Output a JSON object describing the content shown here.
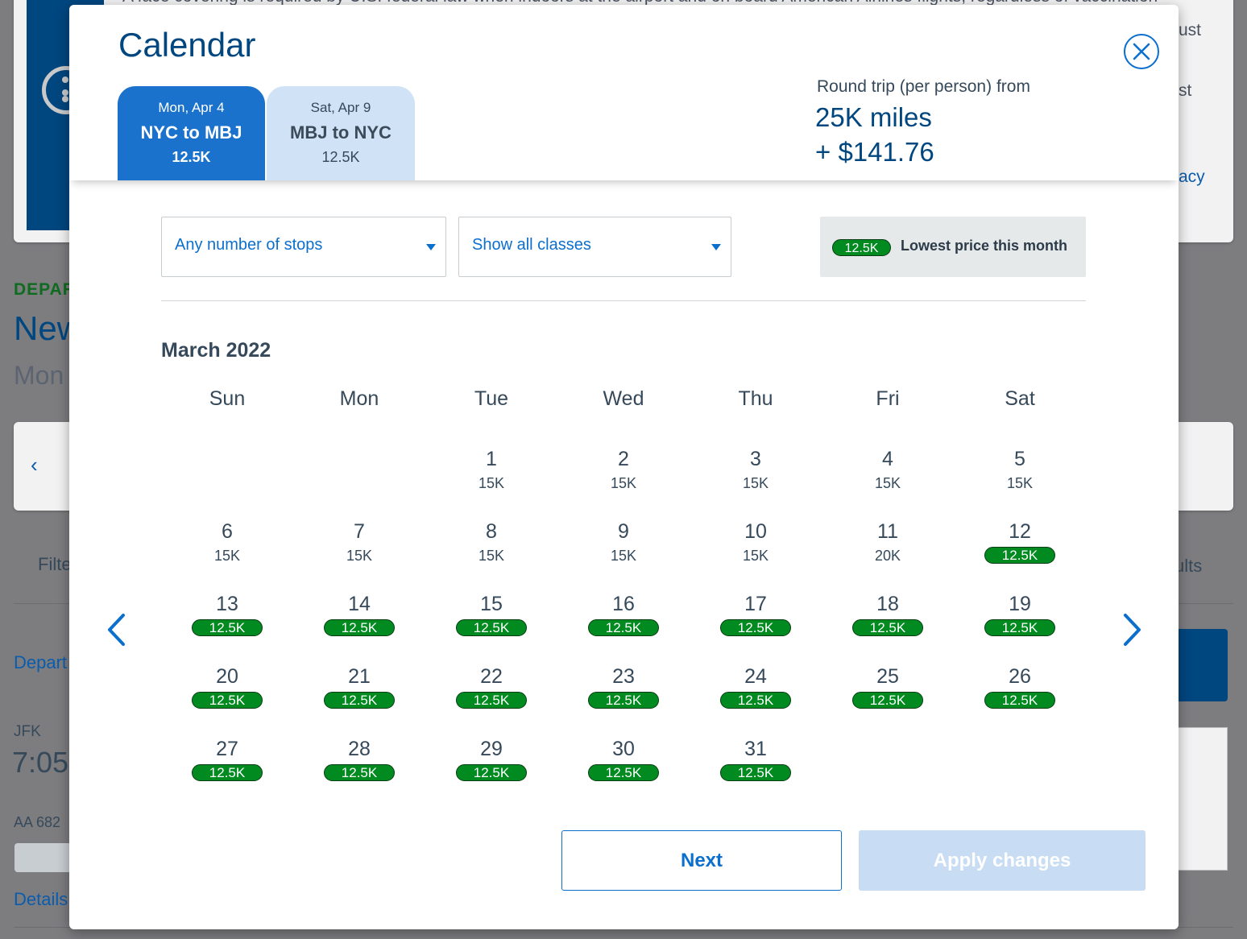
{
  "background": {
    "notice_line1": "A face covering is required by U.S. federal law when indoors at the airport and on board American Airlines flights, regardless of vaccination",
    "notice_frag_ust": "ust",
    "notice_frag_st": "st",
    "notice_link_frag": "acy",
    "depart_label": "DEPAR",
    "city_frag": "New",
    "date_frag": "Mon",
    "filter_frag": "Filte",
    "results_frag": "ults",
    "depart_link_frag": "Depart",
    "airport": "JFK",
    "time": "7:05",
    "flight": "AA 682",
    "details_link": "Details"
  },
  "modal": {
    "title": "Calendar",
    "close_label": "Close",
    "tabs": [
      {
        "date": "Mon, Apr 4",
        "route": "NYC to MBJ",
        "price": "12.5K",
        "active": true
      },
      {
        "date": "Sat, Apr 9",
        "route": "MBJ to NYC",
        "price": "12.5K",
        "active": false
      }
    ],
    "fare": {
      "label": "Round trip (per person) from",
      "miles": "25K miles",
      "cash": "+ $141.76"
    },
    "filters": {
      "stops": "Any number of stops",
      "classes": "Show all classes"
    },
    "lowest": {
      "badge": "12.5K",
      "text": "Lowest price this month"
    },
    "month": "March 2022",
    "weekdays": [
      "Sun",
      "Mon",
      "Tue",
      "Wed",
      "Thu",
      "Fri",
      "Sat"
    ],
    "days": [
      {
        "n": "1",
        "p": "15K"
      },
      {
        "n": "2",
        "p": "15K"
      },
      {
        "n": "3",
        "p": "15K"
      },
      {
        "n": "4",
        "p": "15K"
      },
      {
        "n": "5",
        "p": "15K"
      },
      {
        "n": "6",
        "p": "15K"
      },
      {
        "n": "7",
        "p": "15K"
      },
      {
        "n": "8",
        "p": "15K"
      },
      {
        "n": "9",
        "p": "15K"
      },
      {
        "n": "10",
        "p": "15K"
      },
      {
        "n": "11",
        "p": "20K"
      },
      {
        "n": "12",
        "p": "12.5K",
        "low": true
      },
      {
        "n": "13",
        "p": "12.5K",
        "low": true
      },
      {
        "n": "14",
        "p": "12.5K",
        "low": true
      },
      {
        "n": "15",
        "p": "12.5K",
        "low": true
      },
      {
        "n": "16",
        "p": "12.5K",
        "low": true
      },
      {
        "n": "17",
        "p": "12.5K",
        "low": true
      },
      {
        "n": "18",
        "p": "12.5K",
        "low": true
      },
      {
        "n": "19",
        "p": "12.5K",
        "low": true
      },
      {
        "n": "20",
        "p": "12.5K",
        "low": true
      },
      {
        "n": "21",
        "p": "12.5K",
        "low": true
      },
      {
        "n": "22",
        "p": "12.5K",
        "low": true
      },
      {
        "n": "23",
        "p": "12.5K",
        "low": true
      },
      {
        "n": "24",
        "p": "12.5K",
        "low": true
      },
      {
        "n": "25",
        "p": "12.5K",
        "low": true
      },
      {
        "n": "26",
        "p": "12.5K",
        "low": true
      },
      {
        "n": "27",
        "p": "12.5K",
        "low": true
      },
      {
        "n": "28",
        "p": "12.5K",
        "low": true
      },
      {
        "n": "29",
        "p": "12.5K",
        "low": true
      },
      {
        "n": "30",
        "p": "12.5K",
        "low": true
      },
      {
        "n": "31",
        "p": "12.5K",
        "low": true
      }
    ],
    "first_weekday_index": 2,
    "buttons": {
      "next": "Next",
      "apply": "Apply changes"
    },
    "icons": {
      "close": "close-circle-icon",
      "prev": "chevron-left-icon",
      "next": "chevron-right-icon",
      "caret": "caret-down-icon"
    },
    "colors": {
      "brand_navy": "#00467f",
      "accent_blue": "#0b6fcd",
      "active_tab": "#1a72cc",
      "inactive_tab": "#cfe2f6",
      "lowest_green": "#008a1f",
      "disabled_button": "#c8dcf3"
    }
  }
}
